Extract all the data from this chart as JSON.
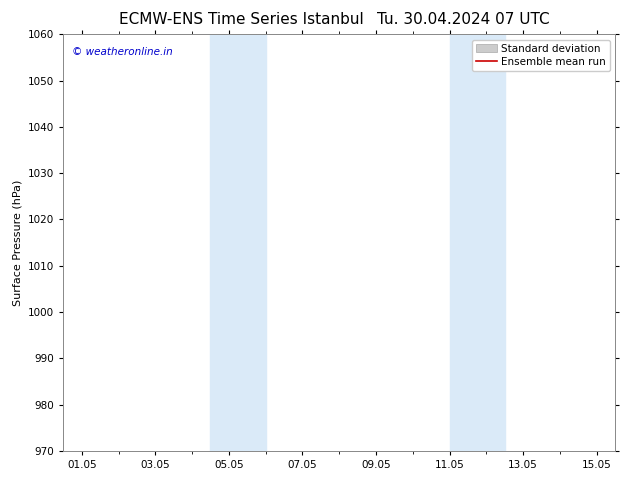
{
  "title": "ECMW-ENS Time Series Istanbul",
  "title_right": "Tu. 30.04.2024 07 UTC",
  "ylabel": "Surface Pressure (hPa)",
  "ylim": [
    970,
    1060
  ],
  "yticks": [
    970,
    980,
    990,
    1000,
    1010,
    1020,
    1030,
    1040,
    1050,
    1060
  ],
  "xlim": [
    0.5,
    15.5
  ],
  "xtick_labels": [
    "01.05",
    "03.05",
    "05.05",
    "07.05",
    "09.05",
    "11.05",
    "13.05",
    "15.05"
  ],
  "xtick_positions": [
    1,
    3,
    5,
    7,
    9,
    11,
    13,
    15
  ],
  "shaded_bands": [
    {
      "x_start": 4.5,
      "x_end": 6.0
    },
    {
      "x_start": 11.0,
      "x_end": 12.5
    }
  ],
  "shaded_color": "#daeaf8",
  "watermark_text": "© weatheronline.in",
  "watermark_color": "#0000cc",
  "legend_std_label": "Standard deviation",
  "legend_mean_label": "Ensemble mean run",
  "legend_std_color": "#cccccc",
  "legend_mean_color": "#cc0000",
  "background_color": "#ffffff",
  "axes_bg_color": "#ffffff",
  "spine_color": "#888888",
  "title_fontsize": 11,
  "label_fontsize": 8,
  "tick_fontsize": 7.5,
  "watermark_fontsize": 7.5,
  "legend_fontsize": 7.5
}
